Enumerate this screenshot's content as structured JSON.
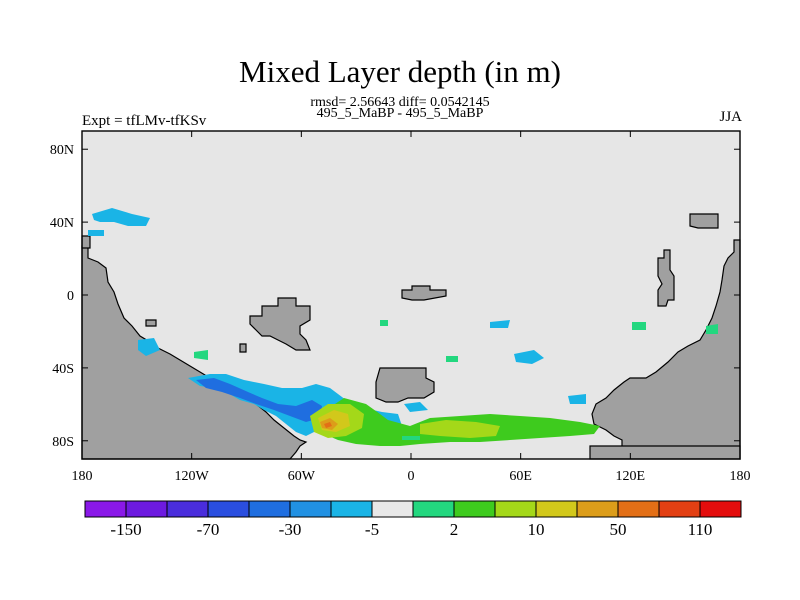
{
  "header": {
    "title": "Mixed Layer depth (in m)",
    "stats": "rmsd= 2.56643 diff= 0.0542145",
    "subtitle": "495_5_MaBP - 495_5_MaBP",
    "experiment": "Expt = tfLMv-tfKSv",
    "season": "JJA"
  },
  "map": {
    "projection": "cylindrical-equidistant",
    "lon_range": [
      -180,
      180
    ],
    "lat_range": [
      -90,
      90
    ],
    "lon_ticks": [
      {
        "value": -180,
        "label": "180"
      },
      {
        "value": -120,
        "label": "120W"
      },
      {
        "value": -60,
        "label": "60W"
      },
      {
        "value": 0,
        "label": "0"
      },
      {
        "value": 60,
        "label": "60E"
      },
      {
        "value": 120,
        "label": "120E"
      },
      {
        "value": 180,
        "label": "180"
      }
    ],
    "lat_ticks": [
      {
        "value": 80,
        "label": "80N"
      },
      {
        "value": 40,
        "label": "40N"
      },
      {
        "value": 0,
        "label": "0"
      },
      {
        "value": -40,
        "label": "40S"
      },
      {
        "value": -80,
        "label": "80S"
      }
    ],
    "colors": {
      "ocean_background": "#e6e6e6",
      "land": "#a0a0a0"
    }
  },
  "colorbar": {
    "colors": [
      "#8a18e8",
      "#6d1ae0",
      "#4a2ddc",
      "#2a4ee0",
      "#1f6ee0",
      "#2191e3",
      "#1ab4e6",
      "#e8e8e8",
      "#23d77f",
      "#3ecb1e",
      "#a4d819",
      "#d2c81b",
      "#dc9d1a",
      "#e36f16",
      "#e34013",
      "#e40d0d"
    ],
    "labels": [
      {
        "text": "-150",
        "boundary": 1
      },
      {
        "text": "-70",
        "boundary": 3
      },
      {
        "text": "-30",
        "boundary": 5
      },
      {
        "text": "-5",
        "boundary": 7
      },
      {
        "text": "2",
        "boundary": 9
      },
      {
        "text": "10",
        "boundary": 11
      },
      {
        "text": "50",
        "boundary": 13
      },
      {
        "text": "110",
        "boundary": 15
      }
    ]
  }
}
